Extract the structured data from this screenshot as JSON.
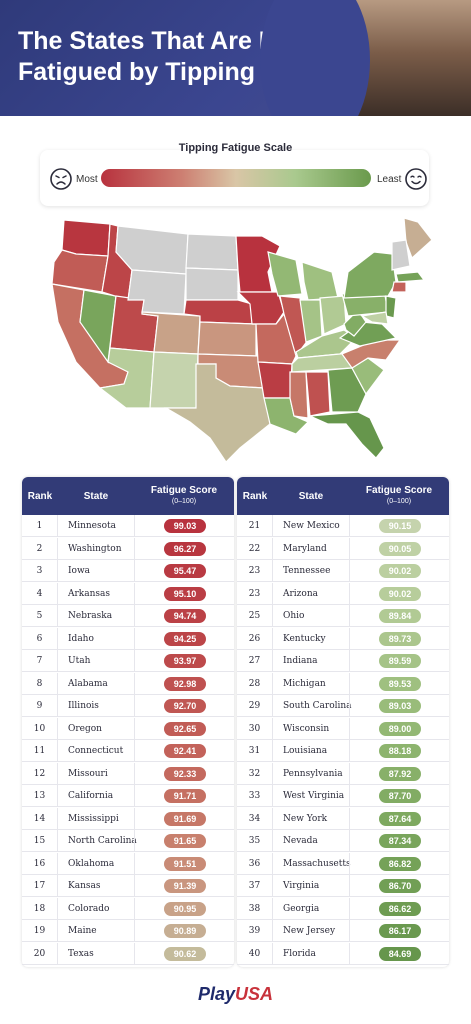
{
  "header": {
    "title": "The States That Are Most Fatigued by Tipping"
  },
  "scale": {
    "title": "Tipping Fatigue Scale",
    "most_label": "Most",
    "least_label": "Least"
  },
  "table": {
    "col_rank": "Rank",
    "col_state": "State",
    "col_score": "Fatigue Score",
    "col_score_sub": "(0–100)",
    "left_rows": [
      {
        "rank": "1",
        "state": "Minnesota",
        "score": "99.03",
        "color": "#b8323e"
      },
      {
        "rank": "2",
        "state": "Washington",
        "score": "96.27",
        "color": "#b8363f"
      },
      {
        "rank": "3",
        "state": "Iowa",
        "score": "95.47",
        "color": "#b93a42"
      },
      {
        "rank": "4",
        "state": "Arkansas",
        "score": "95.10",
        "color": "#ba3d44"
      },
      {
        "rank": "5",
        "state": "Nebraska",
        "score": "94.74",
        "color": "#bb4146"
      },
      {
        "rank": "6",
        "state": "Idaho",
        "score": "94.25",
        "color": "#bc4548"
      },
      {
        "rank": "7",
        "state": "Utah",
        "score": "93.97",
        "color": "#bd4a4b"
      },
      {
        "rank": "8",
        "state": "Alabama",
        "score": "92.98",
        "color": "#bf5150"
      },
      {
        "rank": "9",
        "state": "Illinois",
        "score": "92.70",
        "color": "#c05753"
      },
      {
        "rank": "10",
        "state": "Oregon",
        "score": "92.65",
        "color": "#c15c56"
      },
      {
        "rank": "11",
        "state": "Connecticut",
        "score": "92.41",
        "color": "#c3625a"
      },
      {
        "rank": "12",
        "state": "Missouri",
        "score": "92.33",
        "color": "#c4695e"
      },
      {
        "rank": "13",
        "state": "California",
        "score": "91.71",
        "color": "#c57062"
      },
      {
        "rank": "14",
        "state": "Mississippi",
        "score": "91.69",
        "color": "#c67767"
      },
      {
        "rank": "15",
        "state": "North Carolina",
        "score": "91.65",
        "color": "#c8806d"
      },
      {
        "rank": "16",
        "state": "Oklahoma",
        "score": "91.51",
        "color": "#c98b76"
      },
      {
        "rank": "17",
        "state": "Kansas",
        "score": "91.39",
        "color": "#c9967f"
      },
      {
        "rank": "18",
        "state": "Colorado",
        "score": "90.95",
        "color": "#c8a288"
      },
      {
        "rank": "19",
        "state": "Maine",
        "score": "90.89",
        "color": "#c6ae93"
      },
      {
        "rank": "20",
        "state": "Texas",
        "score": "90.62",
        "color": "#c4bb9b"
      }
    ],
    "right_rows": [
      {
        "rank": "21",
        "state": "New Mexico",
        "score": "90.15",
        "color": "#c5d3ad"
      },
      {
        "rank": "22",
        "state": "Maryland",
        "score": "90.05",
        "color": "#bfd1a5"
      },
      {
        "rank": "23",
        "state": "Tennessee",
        "score": "90.02",
        "color": "#bbcfa0"
      },
      {
        "rank": "23",
        "state": "Arizona",
        "score": "90.02",
        "color": "#b7cd9b"
      },
      {
        "rank": "25",
        "state": "Ohio",
        "score": "89.84",
        "color": "#b1ca94"
      },
      {
        "rank": "26",
        "state": "Kentucky",
        "score": "89.73",
        "color": "#abc68d"
      },
      {
        "rank": "27",
        "state": "Indiana",
        "score": "89.59",
        "color": "#a5c387"
      },
      {
        "rank": "28",
        "state": "Michigan",
        "score": "89.53",
        "color": "#9fc080"
      },
      {
        "rank": "29",
        "state": "South Carolina",
        "score": "89.03",
        "color": "#99bc7a"
      },
      {
        "rank": "30",
        "state": "Wisconsin",
        "score": "89.00",
        "color": "#93b874"
      },
      {
        "rank": "31",
        "state": "Louisiana",
        "score": "88.18",
        "color": "#8db46e"
      },
      {
        "rank": "32",
        "state": "Pennsylvania",
        "score": "87.92",
        "color": "#88b069"
      },
      {
        "rank": "33",
        "state": "West Virginia",
        "score": "87.70",
        "color": "#82ac64"
      },
      {
        "rank": "34",
        "state": "New York",
        "score": "87.64",
        "color": "#7ea960"
      },
      {
        "rank": "35",
        "state": "Nevada",
        "score": "87.34",
        "color": "#79a55c"
      },
      {
        "rank": "36",
        "state": "Massachusetts",
        "score": "86.82",
        "color": "#75a258"
      },
      {
        "rank": "37",
        "state": "Virginia",
        "score": "86.70",
        "color": "#719f55"
      },
      {
        "rank": "38",
        "state": "Georgia",
        "score": "86.62",
        "color": "#6e9c52"
      },
      {
        "rank": "39",
        "state": "New Jersey",
        "score": "86.17",
        "color": "#6a994f"
      },
      {
        "rank": "40",
        "state": "Florida",
        "score": "84.69",
        "color": "#66964c"
      }
    ]
  },
  "logo": {
    "play": "Play",
    "usa": "USA"
  },
  "map": {
    "regions": [
      {
        "name": "washington",
        "color": "#b8363f"
      },
      {
        "name": "oregon",
        "color": "#c15c56"
      },
      {
        "name": "california",
        "color": "#c57062"
      },
      {
        "name": "nevada",
        "color": "#79a55c"
      },
      {
        "name": "idaho",
        "color": "#bc4548"
      },
      {
        "name": "utah",
        "color": "#bd4a4b"
      },
      {
        "name": "arizona",
        "color": "#b7cd9b"
      },
      {
        "name": "montana",
        "color": "#cfcfcf"
      },
      {
        "name": "wyoming",
        "color": "#cfcfcf"
      },
      {
        "name": "colorado",
        "color": "#c8a288"
      },
      {
        "name": "new-mexico",
        "color": "#c5d3ad"
      },
      {
        "name": "north-dakota",
        "color": "#cfcfcf"
      },
      {
        "name": "south-dakota",
        "color": "#cfcfcf"
      },
      {
        "name": "nebraska",
        "color": "#bb4146"
      },
      {
        "name": "kansas",
        "color": "#c9967f"
      },
      {
        "name": "oklahoma",
        "color": "#c98b76"
      },
      {
        "name": "texas",
        "color": "#c4bb9b"
      },
      {
        "name": "minnesota",
        "color": "#b8323e"
      },
      {
        "name": "iowa",
        "color": "#b93a42"
      },
      {
        "name": "missouri",
        "color": "#c4695e"
      },
      {
        "name": "arkansas",
        "color": "#ba3d44"
      },
      {
        "name": "louisiana",
        "color": "#8db46e"
      },
      {
        "name": "wisconsin",
        "color": "#93b874"
      },
      {
        "name": "illinois",
        "color": "#c05753"
      },
      {
        "name": "michigan",
        "color": "#9fc080"
      },
      {
        "name": "indiana",
        "color": "#a5c387"
      },
      {
        "name": "ohio",
        "color": "#b1ca94"
      },
      {
        "name": "kentucky",
        "color": "#abc68d"
      },
      {
        "name": "tennessee",
        "color": "#bbcfa0"
      },
      {
        "name": "mississippi",
        "color": "#c67767"
      },
      {
        "name": "alabama",
        "color": "#bf5150"
      },
      {
        "name": "georgia",
        "color": "#6e9c52"
      },
      {
        "name": "florida",
        "color": "#66964c"
      },
      {
        "name": "south-carolina",
        "color": "#99bc7a"
      },
      {
        "name": "north-carolina",
        "color": "#c8806d"
      },
      {
        "name": "virginia",
        "color": "#719f55"
      },
      {
        "name": "west-virginia",
        "color": "#82ac64"
      },
      {
        "name": "pennsylvania",
        "color": "#88b069"
      },
      {
        "name": "new-york",
        "color": "#7ea960"
      },
      {
        "name": "maine",
        "color": "#c6ae93"
      },
      {
        "name": "new-england-north",
        "color": "#cfcfcf"
      },
      {
        "name": "massachusetts",
        "color": "#75a258"
      },
      {
        "name": "connecticut",
        "color": "#c3625a"
      },
      {
        "name": "new-jersey",
        "color": "#6a994f"
      },
      {
        "name": "maryland",
        "color": "#bfd1a5"
      }
    ]
  }
}
